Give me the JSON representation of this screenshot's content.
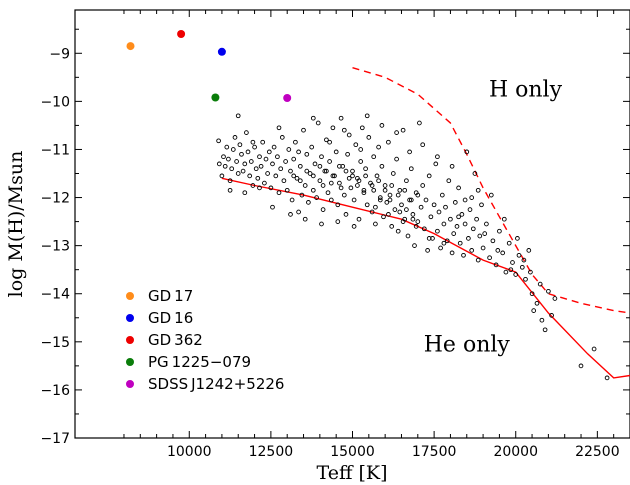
{
  "chart_data": {
    "type": "scatter",
    "title": "",
    "xlabel": "Teff [K]",
    "ylabel": "log M(H)/Msun",
    "xlim": [
      6500,
      23500
    ],
    "ylim": [
      -17,
      -8.1
    ],
    "xticks": [
      10000,
      12500,
      15000,
      17500,
      20000,
      22500
    ],
    "xtick_labels": [
      "10000",
      "12500",
      "15000",
      "17500",
      "20000",
      "22500"
    ],
    "yticks": [
      -17,
      -16,
      -15,
      -14,
      -13,
      -12,
      -11,
      -10,
      -9
    ],
    "ytick_labels": [
      "−17",
      "−16",
      "−15",
      "−14",
      "−13",
      "−12",
      "−11",
      "−10",
      "−9"
    ],
    "grid": false,
    "legend_position": "bottom-left",
    "annotations": [
      {
        "text": "H only",
        "x": 20300,
        "y": -9.9
      },
      {
        "text": "He only",
        "x": 18500,
        "y": -15.2
      }
    ],
    "highlighted_stars": [
      {
        "name": "GD 17",
        "x": 8200,
        "y": -8.85,
        "color": "#ff8c1a"
      },
      {
        "name": "GD 16",
        "x": 11000,
        "y": -8.97,
        "color": "#0000ee"
      },
      {
        "name": "GD 362",
        "x": 9750,
        "y": -8.6,
        "color": "#ee0000"
      },
      {
        "name": "PG 1225−079",
        "x": 10800,
        "y": -9.92,
        "color": "#0a7d0a"
      },
      {
        "name": "SDSS J1242+5226",
        "x": 13000,
        "y": -9.93,
        "color": "#c000c0"
      }
    ],
    "lines": [
      {
        "style": "solid",
        "color": "#ff0000",
        "x": [
          11000,
          12000,
          13500,
          15000,
          16500,
          17500,
          19000,
          20000,
          21000,
          22200,
          23000,
          23500
        ],
        "y": [
          -11.6,
          -11.75,
          -11.95,
          -12.2,
          -12.45,
          -12.75,
          -13.3,
          -13.55,
          -14.4,
          -15.25,
          -15.75,
          -15.7
        ]
      },
      {
        "style": "dashed",
        "color": "#ff0000",
        "x": [
          15000,
          16000,
          17000,
          18000,
          18500,
          19000,
          19500,
          20000,
          20500,
          21000,
          22000,
          23000,
          23500
        ],
        "y": [
          -9.3,
          -9.5,
          -9.85,
          -10.45,
          -11.1,
          -11.8,
          -12.4,
          -13.0,
          -13.6,
          -14.0,
          -14.2,
          -14.35,
          -14.4
        ]
      }
    ],
    "scatter_points": [
      [
        10900,
        -10.82
      ],
      [
        10920,
        -11.3
      ],
      [
        11000,
        -11.55
      ],
      [
        11050,
        -11.15
      ],
      [
        11100,
        -11.35
      ],
      [
        11150,
        -10.95
      ],
      [
        11200,
        -11.2
      ],
      [
        11250,
        -11.65
      ],
      [
        11300,
        -11.4
      ],
      [
        11350,
        -11.0
      ],
      [
        11400,
        -10.75
      ],
      [
        11450,
        -11.25
      ],
      [
        11500,
        -11.5
      ],
      [
        11550,
        -10.9
      ],
      [
        11600,
        -11.1
      ],
      [
        11650,
        -11.45
      ],
      [
        11700,
        -11.3
      ],
      [
        11750,
        -10.65
      ],
      [
        11800,
        -11.05
      ],
      [
        11850,
        -11.55
      ],
      [
        11900,
        -11.25
      ],
      [
        11950,
        -11.75
      ],
      [
        12000,
        -10.95
      ],
      [
        12050,
        -11.4
      ],
      [
        12100,
        -11.6
      ],
      [
        12150,
        -11.15
      ],
      [
        12200,
        -11.35
      ],
      [
        12250,
        -10.85
      ],
      [
        12300,
        -11.7
      ],
      [
        12350,
        -11.2
      ],
      [
        12400,
        -11.5
      ],
      [
        12450,
        -11.05
      ],
      [
        12500,
        -11.8
      ],
      [
        12550,
        -11.3
      ],
      [
        12600,
        -10.95
      ],
      [
        12650,
        -11.55
      ],
      [
        12700,
        -11.15
      ],
      [
        12750,
        -11.9
      ],
      [
        12800,
        -11.4
      ],
      [
        12850,
        -10.75
      ],
      [
        12900,
        -11.65
      ],
      [
        12950,
        -11.25
      ],
      [
        13000,
        -11.85
      ],
      [
        13050,
        -11.0
      ],
      [
        13100,
        -11.45
      ],
      [
        13150,
        -12.05
      ],
      [
        13200,
        -11.2
      ],
      [
        13250,
        -10.85
      ],
      [
        13300,
        -11.6
      ],
      [
        13350,
        -12.3
      ],
      [
        13400,
        -11.35
      ],
      [
        13450,
        -11.95
      ],
      [
        13500,
        -10.6
      ],
      [
        13550,
        -11.75
      ],
      [
        13600,
        -11.1
      ],
      [
        13650,
        -12.1
      ],
      [
        13700,
        -11.5
      ],
      [
        13750,
        -10.95
      ],
      [
        13800,
        -11.85
      ],
      [
        13850,
        -11.3
      ],
      [
        13900,
        -12.0
      ],
      [
        13950,
        -10.45
      ],
      [
        14000,
        -11.65
      ],
      [
        14050,
        -11.15
      ],
      [
        14100,
        -12.25
      ],
      [
        14150,
        -11.45
      ],
      [
        14200,
        -10.8
      ],
      [
        14250,
        -11.9
      ],
      [
        14300,
        -11.25
      ],
      [
        14350,
        -12.05
      ],
      [
        14400,
        -10.55
      ],
      [
        14450,
        -11.55
      ],
      [
        14500,
        -11.05
      ],
      [
        14550,
        -12.15
      ],
      [
        14600,
        -11.7
      ],
      [
        14650,
        -10.35
      ],
      [
        14700,
        -11.35
      ],
      [
        14750,
        -11.95
      ],
      [
        14800,
        -12.35
      ],
      [
        14850,
        -11.1
      ],
      [
        14900,
        -10.7
      ],
      [
        14950,
        -11.8
      ],
      [
        15000,
        -11.45
      ],
      [
        15050,
        -12.05
      ],
      [
        15100,
        -10.9
      ],
      [
        15150,
        -11.6
      ],
      [
        15200,
        -12.45
      ],
      [
        15250,
        -11.25
      ],
      [
        15300,
        -10.55
      ],
      [
        15350,
        -11.85
      ],
      [
        15400,
        -11.4
      ],
      [
        15450,
        -12.15
      ],
      [
        15500,
        -10.75
      ],
      [
        15550,
        -11.7
      ],
      [
        15600,
        -12.3
      ],
      [
        15650,
        -11.15
      ],
      [
        15700,
        -12.55
      ],
      [
        15750,
        -11.55
      ],
      [
        15800,
        -10.95
      ],
      [
        15850,
        -12.0
      ],
      [
        15900,
        -11.35
      ],
      [
        15950,
        -12.4
      ],
      [
        16000,
        -11.75
      ],
      [
        16050,
        -12.1
      ],
      [
        16100,
        -10.85
      ],
      [
        16150,
        -11.95
      ],
      [
        16200,
        -12.6
      ],
      [
        16250,
        -11.5
      ],
      [
        16300,
        -12.25
      ],
      [
        16350,
        -11.2
      ],
      [
        16400,
        -12.7
      ],
      [
        16450,
        -11.85
      ],
      [
        16500,
        -12.15
      ],
      [
        16550,
        -10.6
      ],
      [
        16600,
        -12.45
      ],
      [
        16650,
        -11.65
      ],
      [
        16700,
        -12.8
      ],
      [
        16750,
        -12.05
      ],
      [
        16800,
        -11.4
      ],
      [
        16850,
        -12.35
      ],
      [
        16900,
        -13.0
      ],
      [
        16950,
        -11.9
      ],
      [
        17000,
        -12.5
      ],
      [
        17050,
        -10.45
      ],
      [
        17100,
        -12.2
      ],
      [
        17150,
        -11.75
      ],
      [
        17200,
        -12.65
      ],
      [
        17250,
        -12.05
      ],
      [
        17300,
        -13.1
      ],
      [
        17350,
        -11.55
      ],
      [
        17400,
        -12.4
      ],
      [
        17450,
        -12.85
      ],
      [
        17500,
        -12.15
      ],
      [
        17550,
        -11.3
      ],
      [
        17600,
        -12.7
      ],
      [
        17650,
        -12.3
      ],
      [
        17700,
        -13.05
      ],
      [
        17750,
        -11.95
      ],
      [
        17800,
        -12.55
      ],
      [
        17850,
        -12.2
      ],
      [
        17900,
        -12.9
      ],
      [
        17950,
        -11.65
      ],
      [
        18000,
        -12.45
      ],
      [
        18050,
        -13.15
      ],
      [
        18100,
        -12.75
      ],
      [
        18150,
        -12.1
      ],
      [
        18200,
        -12.6
      ],
      [
        18250,
        -11.8
      ],
      [
        18300,
        -12.95
      ],
      [
        18350,
        -12.35
      ],
      [
        18400,
        -13.2
      ],
      [
        18450,
        -12.55
      ],
      [
        18500,
        -11.05
      ],
      [
        18550,
        -12.85
      ],
      [
        18600,
        -12.25
      ],
      [
        18650,
        -13.1
      ],
      [
        18700,
        -12.65
      ],
      [
        18750,
        -11.5
      ],
      [
        18800,
        -12.45
      ],
      [
        18850,
        -13.3
      ],
      [
        18900,
        -12.8
      ],
      [
        18950,
        -12.15
      ],
      [
        19000,
        -13.05
      ],
      [
        19100,
        -12.55
      ],
      [
        19200,
        -13.25
      ],
      [
        19300,
        -12.9
      ],
      [
        19400,
        -13.4
      ],
      [
        19500,
        -12.7
      ],
      [
        19600,
        -13.15
      ],
      [
        19700,
        -13.55
      ],
      [
        19800,
        -12.95
      ],
      [
        19900,
        -13.35
      ],
      [
        20000,
        -13.6
      ],
      [
        20100,
        -13.2
      ],
      [
        20200,
        -13.45
      ],
      [
        20300,
        -13.7
      ],
      [
        20400,
        -13.1
      ],
      [
        20500,
        -14.0
      ],
      [
        20550,
        -14.35
      ],
      [
        20650,
        -14.2
      ],
      [
        20750,
        -13.8
      ],
      [
        20800,
        -14.55
      ],
      [
        20900,
        -14.75
      ],
      [
        21000,
        -13.95
      ],
      [
        21100,
        -14.45
      ],
      [
        21200,
        -14.1
      ],
      [
        22000,
        -15.5
      ],
      [
        22400,
        -15.15
      ],
      [
        22800,
        -15.75
      ],
      [
        11250,
        -11.85
      ],
      [
        11500,
        -10.3
      ],
      [
        11700,
        -11.9
      ],
      [
        11950,
        -10.85
      ],
      [
        12150,
        -11.8
      ],
      [
        12550,
        -12.2
      ],
      [
        12750,
        -10.55
      ],
      [
        13100,
        -12.35
      ],
      [
        13350,
        -11.05
      ],
      [
        13550,
        -12.45
      ],
      [
        13800,
        -10.35
      ],
      [
        14050,
        -12.55
      ],
      [
        14300,
        -10.85
      ],
      [
        14550,
        -12.5
      ],
      [
        14750,
        -10.6
      ],
      [
        15050,
        -12.6
      ],
      [
        15250,
        -11.0
      ],
      [
        15450,
        -10.3
      ],
      [
        15700,
        -12.2
      ],
      [
        15900,
        -10.5
      ],
      [
        16100,
        -12.35
      ],
      [
        16350,
        -10.65
      ],
      [
        16550,
        -12.5
      ],
      [
        16750,
        -11.05
      ],
      [
        16950,
        -12.6
      ],
      [
        17150,
        -10.9
      ],
      [
        17350,
        -12.85
      ],
      [
        17600,
        -11.15
      ],
      [
        17800,
        -12.95
      ],
      [
        18050,
        -11.35
      ],
      [
        18250,
        -12.4
      ],
      [
        18450,
        -12.05
      ],
      [
        18650,
        -12.0
      ],
      [
        18850,
        -11.85
      ],
      [
        19050,
        -12.75
      ],
      [
        19250,
        -11.95
      ],
      [
        19450,
        -13.1
      ],
      [
        19650,
        -12.45
      ],
      [
        19850,
        -13.5
      ],
      [
        20050,
        -12.85
      ],
      [
        20250,
        -13.3
      ],
      [
        20450,
        -13.55
      ],
      [
        13200,
        -11.55
      ],
      [
        13400,
        -11.65
      ],
      [
        13600,
        -11.45
      ],
      [
        13800,
        -11.55
      ],
      [
        14000,
        -11.35
      ],
      [
        14200,
        -11.45
      ],
      [
        14400,
        -11.55
      ],
      [
        14600,
        -11.35
      ],
      [
        14800,
        -11.45
      ],
      [
        15000,
        -11.55
      ],
      [
        15200,
        -11.65
      ],
      [
        15400,
        -11.55
      ],
      [
        15600,
        -11.75
      ],
      [
        15800,
        -11.65
      ],
      [
        16000,
        -11.85
      ],
      [
        16200,
        -11.75
      ],
      [
        16400,
        -11.95
      ],
      [
        16600,
        -11.85
      ],
      [
        16800,
        -12.05
      ],
      [
        17000,
        -11.95
      ],
      [
        14100,
        -11.75
      ],
      [
        14350,
        -11.7
      ],
      [
        14650,
        -11.8
      ],
      [
        14900,
        -11.6
      ],
      [
        15150,
        -11.75
      ],
      [
        15350,
        -11.9
      ],
      [
        15650,
        -11.85
      ],
      [
        15850,
        -12.05
      ],
      [
        16150,
        -12.05
      ],
      [
        16450,
        -12.3
      ],
      [
        16650,
        -12.25
      ],
      [
        16850,
        -12.45
      ]
    ]
  }
}
